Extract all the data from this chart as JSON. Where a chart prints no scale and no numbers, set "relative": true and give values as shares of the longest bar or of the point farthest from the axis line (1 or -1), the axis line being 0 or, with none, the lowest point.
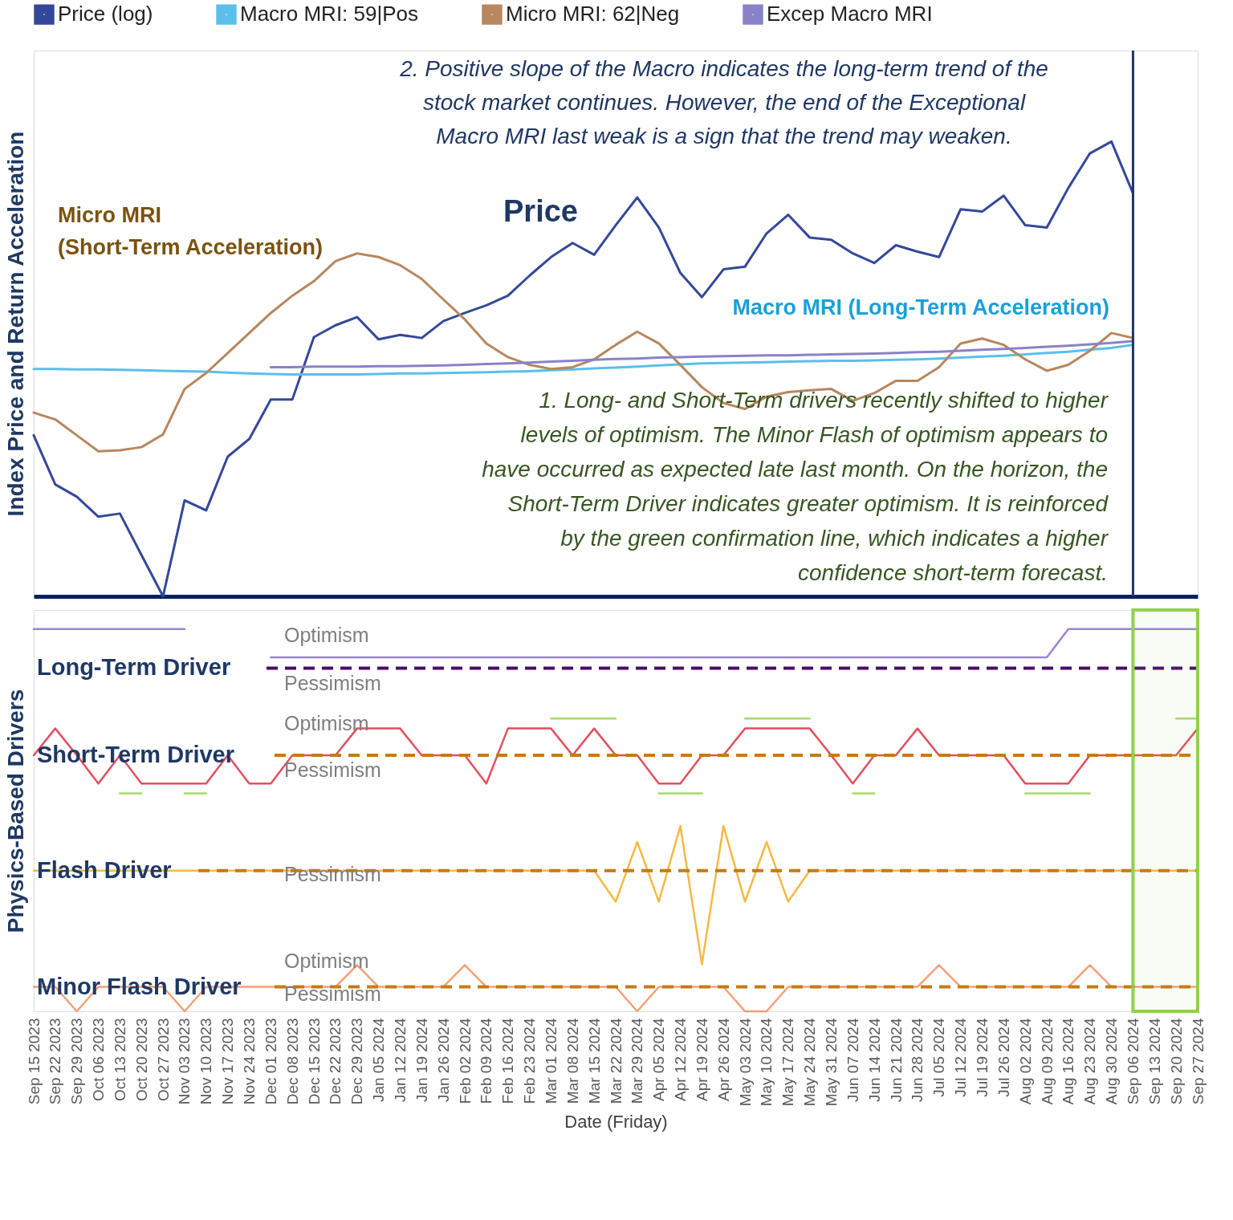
{
  "chart_data": [
    {
      "type": "line",
      "relative": true,
      "tick_labels": false,
      "legend": "top",
      "ylabel": "Index Price and Return Acceleration",
      "categories": [
        "Sep 15 2023",
        "Sep 22 2023",
        "Sep 29 2023",
        "Oct 06 2023",
        "Oct 13 2023",
        "Oct 20 2023",
        "Oct 27 2023",
        "Nov 03 2023",
        "Nov 10 2023",
        "Nov 17 2023",
        "Nov 24 2023",
        "Dec 01 2023",
        "Dec 08 2023",
        "Dec 15 2023",
        "Dec 22 2023",
        "Dec 29 2023",
        "Jan 05 2024",
        "Jan 12 2024",
        "Jan 19 2024",
        "Jan 26 2024",
        "Feb 02 2024",
        "Feb 09 2024",
        "Feb 16 2024",
        "Feb 23 2024",
        "Mar 01 2024",
        "Mar 08 2024",
        "Mar 15 2024",
        "Mar 22 2024",
        "Mar 29 2024",
        "Apr 05 2024",
        "Apr 12 2024",
        "Apr 19 2024",
        "Apr 26 2024",
        "May 03 2024",
        "May 10 2024",
        "May 17 2024",
        "May 24 2024",
        "May 31 2024",
        "Jun 07 2024",
        "Jun 14 2024",
        "Jun 21 2024",
        "Jun 28 2024",
        "Jul 05 2024",
        "Jul 12 2024",
        "Jul 19 2024",
        "Jul 26 2024",
        "Aug 02 2024",
        "Aug 09 2024",
        "Aug 16 2024",
        "Aug 23 2024",
        "Aug 30 2024",
        "Sep 06 2024",
        "Sep 13 2024",
        "Sep 20 2024",
        "Sep 27 2024"
      ],
      "series": [
        {
          "name": "Price (log)",
          "color": "#34489a",
          "values": [
            0.354,
            0.246,
            0.219,
            0.175,
            0.182,
            0.091,
            0,
            0.211,
            0.189,
            0.307,
            0.346,
            0.433,
            0.433,
            0.57,
            0.596,
            0.614,
            0.565,
            0.575,
            0.568,
            0.605,
            0.623,
            0.64,
            0.661,
            0.705,
            0.746,
            0.777,
            0.751,
            0.816,
            0.877,
            0.811,
            0.711,
            0.658,
            0.719,
            0.725,
            0.798,
            0.839,
            0.789,
            0.784,
            0.754,
            0.733,
            0.772,
            0.758,
            0.746,
            0.851,
            0.846,
            0.881,
            0.816,
            0.811,
            0.898,
            0.974,
            1.0,
            0.886,
            null,
            null,
            null
          ]
        },
        {
          "name": "Macro MRI: 59|Pos",
          "color": "#5bbfea",
          "values": [
            0.5,
            0.5,
            0.499,
            0.499,
            0.498,
            0.497,
            0.496,
            0.495,
            0.494,
            0.492,
            0.49,
            0.489,
            0.488,
            0.488,
            0.488,
            0.488,
            0.489,
            0.49,
            0.49,
            0.491,
            0.492,
            0.493,
            0.494,
            0.495,
            0.497,
            0.499,
            0.501,
            0.503,
            0.505,
            0.508,
            0.51,
            0.512,
            0.513,
            0.514,
            0.515,
            0.516,
            0.517,
            0.518,
            0.518,
            0.519,
            0.52,
            0.521,
            0.523,
            0.525,
            0.527,
            0.529,
            0.532,
            0.535,
            0.538,
            0.542,
            0.546,
            0.553,
            null,
            null,
            null
          ]
        },
        {
          "name": "Micro MRI: 62|Neg",
          "color": "#b8875e",
          "values": [
            0.404,
            0.389,
            0.354,
            0.319,
            0.321,
            0.328,
            0.356,
            0.456,
            0.491,
            0.535,
            0.579,
            0.623,
            0.661,
            0.693,
            0.737,
            0.754,
            0.746,
            0.728,
            0.698,
            0.653,
            0.609,
            0.556,
            0.526,
            0.509,
            0.5,
            0.504,
            0.521,
            0.553,
            0.582,
            0.556,
            0.509,
            0.46,
            0.425,
            0.412,
            0.439,
            0.449,
            0.453,
            0.456,
            0.43,
            0.447,
            0.474,
            0.474,
            0.504,
            0.556,
            0.567,
            0.553,
            0.521,
            0.496,
            0.509,
            0.54,
            0.579,
            0.568,
            null,
            null,
            null
          ]
        },
        {
          "name": "Excep Macro MRI",
          "color": "#8a82c8",
          "values": [
            null,
            null,
            null,
            null,
            null,
            null,
            null,
            null,
            null,
            null,
            null,
            0.504,
            0.504,
            0.505,
            0.505,
            0.505,
            0.506,
            0.506,
            0.507,
            0.508,
            0.509,
            0.511,
            0.512,
            0.514,
            0.516,
            0.518,
            0.52,
            0.522,
            0.523,
            0.525,
            0.526,
            0.527,
            0.528,
            0.529,
            0.53,
            0.53,
            0.531,
            0.532,
            0.533,
            0.534,
            0.535,
            0.537,
            0.538,
            0.54,
            0.542,
            0.544,
            0.546,
            0.549,
            0.551,
            0.554,
            0.557,
            0.561,
            null,
            null,
            null
          ]
        }
      ],
      "ref_lines": [
        {
          "axis": "x",
          "value": "Sep 06 2024",
          "color": "#1f3864"
        }
      ],
      "annotations": [
        "2. Positive slope of the Macro indicates the long-term trend of the\nstock market continues. However, the end of the Exceptional\nMacro MRI last weak is a sign that the trend may weaken.",
        "Micro MRI\n(Short-Term Acceleration)",
        "Price",
        "Macro MRI (Long-Term Acceleration)",
        "1. Long- and Short-Term drivers recently shifted to higher\nlevels of optimism. The Minor Flash of optimism appears to\nhave occurred as expected late last month. On the horizon, the\nShort-Term Driver indicates greater optimism. It is reinforced\nby the green confirmation line, which indicates a higher\nconfidence short-term forecast."
      ]
    },
    {
      "type": "line",
      "relative": true,
      "tick_labels": "x",
      "ylabel": "Physics-Based Drivers",
      "xlabel": "Date (Friday)",
      "categories": [
        "Sep 15 2023",
        "Sep 22 2023",
        "Sep 29 2023",
        "Oct 06 2023",
        "Oct 13 2023",
        "Oct 20 2023",
        "Oct 27 2023",
        "Nov 03 2023",
        "Nov 10 2023",
        "Nov 17 2023",
        "Nov 24 2023",
        "Dec 01 2023",
        "Dec 08 2023",
        "Dec 15 2023",
        "Dec 22 2023",
        "Dec 29 2023",
        "Jan 05 2024",
        "Jan 12 2024",
        "Jan 19 2024",
        "Jan 26 2024",
        "Feb 02 2024",
        "Feb 09 2024",
        "Feb 16 2024",
        "Feb 23 2024",
        "Mar 01 2024",
        "Mar 08 2024",
        "Mar 15 2024",
        "Mar 22 2024",
        "Mar 29 2024",
        "Apr 05 2024",
        "Apr 12 2024",
        "Apr 19 2024",
        "Apr 26 2024",
        "May 03 2024",
        "May 10 2024",
        "May 17 2024",
        "May 24 2024",
        "May 31 2024",
        "Jun 07 2024",
        "Jun 14 2024",
        "Jun 21 2024",
        "Jun 28 2024",
        "Jul 05 2024",
        "Jul 12 2024",
        "Jul 19 2024",
        "Jul 26 2024",
        "Aug 02 2024",
        "Aug 09 2024",
        "Aug 16 2024",
        "Aug 23 2024",
        "Aug 30 2024",
        "Sep 06 2024",
        "Sep 13 2024",
        "Sep 20 2024",
        "Sep 27 2024"
      ],
      "series": [
        {
          "color": "#9b84d6",
          "values": [
            1.0,
            1.0,
            1.0,
            1.0,
            1.0,
            1.0,
            1.0,
            1.0,
            null,
            null,
            null,
            0.926,
            0.926,
            0.926,
            0.926,
            0.926,
            0.926,
            0.926,
            0.926,
            0.926,
            0.926,
            0.926,
            0.926,
            0.926,
            0.926,
            0.926,
            0.926,
            0.926,
            0.926,
            0.926,
            0.926,
            0.926,
            0.926,
            0.926,
            0.926,
            0.926,
            0.926,
            0.926,
            0.926,
            0.926,
            0.926,
            0.926,
            0.926,
            0.926,
            0.926,
            0.926,
            0.926,
            0.926,
            1.0,
            1.0,
            1.0,
            1.0,
            1.0,
            1.0,
            1.0
          ]
        },
        {
          "color": "#e0505e",
          "values": [
            0.67,
            0.74,
            0.67,
            0.596,
            0.67,
            0.596,
            0.596,
            0.596,
            0.596,
            0.67,
            0.596,
            0.596,
            0.67,
            0.67,
            0.67,
            0.74,
            0.74,
            0.74,
            0.67,
            0.67,
            0.67,
            0.596,
            0.74,
            0.74,
            0.74,
            0.67,
            0.74,
            0.67,
            0.67,
            0.596,
            0.596,
            0.67,
            0.67,
            0.74,
            0.74,
            0.74,
            0.74,
            0.67,
            0.596,
            0.67,
            0.67,
            0.74,
            0.67,
            0.67,
            0.67,
            0.67,
            0.596,
            0.596,
            0.596,
            0.67,
            0.67,
            0.67,
            0.67,
            0.67,
            0.74
          ]
        },
        {
          "color": "#a6d96a",
          "values": [
            null,
            null,
            null,
            null,
            null,
            null,
            null,
            null,
            null,
            null,
            null,
            null,
            null,
            null,
            null,
            null,
            null,
            null,
            null,
            null,
            null,
            null,
            null,
            null,
            0.766,
            0.766,
            0.766,
            0.766,
            null,
            null,
            null,
            null,
            null,
            0.766,
            0.766,
            0.766,
            0.766,
            null,
            null,
            null,
            null,
            null,
            null,
            null,
            null,
            null,
            null,
            null,
            null,
            null,
            null,
            null,
            null,
            0.766,
            0.766
          ]
        },
        {
          "color": "#a6d96a",
          "values": [
            null,
            null,
            null,
            null,
            0.57,
            0.57,
            null,
            0.57,
            0.57,
            null,
            null,
            null,
            null,
            null,
            null,
            null,
            null,
            null,
            null,
            null,
            null,
            null,
            null,
            null,
            null,
            null,
            null,
            null,
            null,
            0.57,
            0.57,
            0.57,
            null,
            null,
            null,
            null,
            null,
            null,
            0.57,
            0.57,
            null,
            null,
            null,
            null,
            null,
            null,
            0.57,
            0.57,
            0.57,
            0.57,
            null,
            null,
            null,
            null,
            null
          ]
        },
        {
          "color": "#f5b942",
          "values": [
            0.368,
            0.368,
            0.368,
            0.368,
            0.368,
            0.368,
            0.368,
            0.368,
            0.368,
            0.368,
            0.368,
            0.368,
            0.368,
            0.368,
            0.368,
            0.368,
            0.368,
            0.368,
            0.368,
            0.368,
            0.368,
            0.368,
            0.368,
            0.368,
            0.368,
            0.368,
            0.368,
            0.287,
            0.443,
            0.287,
            0.485,
            0.123,
            0.485,
            0.287,
            0.443,
            0.287,
            0.368,
            0.368,
            0.368,
            0.368,
            0.368,
            0.368,
            0.368,
            0.368,
            0.368,
            0.368,
            0.368,
            0.368,
            0.368,
            0.368,
            0.368,
            0.368,
            0.368,
            0.368,
            0.368
          ]
        },
        {
          "color": "#f4a07a",
          "values": [
            0.064,
            0.064,
            0,
            0.064,
            0.064,
            0.064,
            0.064,
            0,
            0.064,
            0.064,
            0.064,
            0.064,
            0.064,
            0.064,
            0.064,
            0.121,
            0.064,
            0.064,
            0.064,
            0.064,
            0.121,
            0.064,
            0.064,
            0.064,
            0.064,
            0.064,
            0.064,
            0.064,
            0,
            0.064,
            0.064,
            0.064,
            0.064,
            0,
            0,
            0.064,
            0.064,
            0.064,
            0.064,
            0.064,
            0.064,
            0.064,
            0.121,
            0.064,
            0.064,
            0.064,
            0.064,
            0.064,
            0.064,
            0.121,
            0.064,
            0.064,
            0.064,
            0.064,
            0.064
          ]
        }
      ],
      "ref_lines": [
        {
          "axis": "y",
          "value": 0.898,
          "label": "Long-Term Driver",
          "color": "#4b0a6b",
          "line_style": "dashed"
        },
        {
          "axis": "y",
          "value": 0.67,
          "label": "Short-Term Driver",
          "color": "#c87a10",
          "line_style": "dashed"
        },
        {
          "axis": "y",
          "value": 0.368,
          "label": "Flash Driver",
          "color": "#c87a10",
          "line_style": "dashed"
        },
        {
          "axis": "y",
          "value": 0.064,
          "label": "Minor Flash Driver",
          "color": "#c87a10",
          "line_style": "dashed"
        },
        {
          "axis": "x",
          "value": "Sep 06 2024",
          "color": "#1f3864"
        }
      ],
      "bands": [
        {
          "axis": "x",
          "from": "Sep 06 2024",
          "to": "Sep 27 2024",
          "color": "#92d050"
        }
      ],
      "annotations": [
        "Optimism",
        "Pessimism",
        "Optimism",
        "Pessimism",
        "Pessimism",
        "Optimism",
        "Pessimism"
      ]
    }
  ]
}
